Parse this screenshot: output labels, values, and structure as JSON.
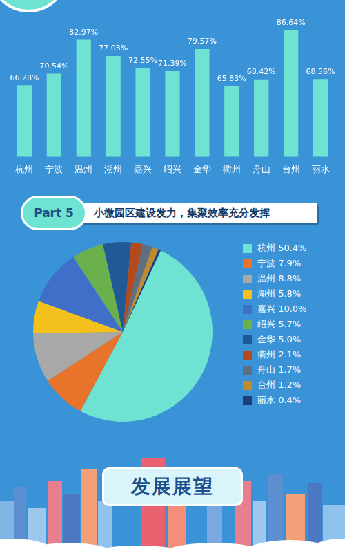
{
  "section": {
    "label": "Part 5",
    "title": "小微园区建设发力，集聚效率充分发挥"
  },
  "footer": {
    "title": "发展展望"
  },
  "chart_data": [
    {
      "type": "bar",
      "categories": [
        "杭州",
        "宁波",
        "温州",
        "湖州",
        "嘉兴",
        "绍兴",
        "金华",
        "衢州",
        "舟山",
        "台州",
        "丽水"
      ],
      "values": [
        66.28,
        70.54,
        82.97,
        77.03,
        72.55,
        71.39,
        79.57,
        65.83,
        68.42,
        86.64,
        68.56
      ],
      "value_labels": [
        "66.28%",
        "70.54%",
        "82.97%",
        "77.03%",
        "72.55%",
        "71.39%",
        "79.57%",
        "65.83%",
        "68.42%",
        "86.64%",
        "68.56%"
      ],
      "color": "#6fe3d1",
      "ylim": [
        40,
        90
      ],
      "grid": false,
      "data_labels": true,
      "tick_labels": "x"
    },
    {
      "type": "pie",
      "categories": [
        "杭州",
        "宁波",
        "温州",
        "湖州",
        "嘉兴",
        "绍兴",
        "金华",
        "衢州",
        "舟山",
        "台州",
        "丽水"
      ],
      "values": [
        50.4,
        7.9,
        8.8,
        5.8,
        10.0,
        5.7,
        5.0,
        2.1,
        1.7,
        1.2,
        0.4
      ],
      "value_labels": [
        "50.4%",
        "7.9%",
        "8.8%",
        "5.8%",
        "10.0%",
        "5.7%",
        "5.0%",
        "2.1%",
        "1.7%",
        "1.2%",
        "0.4%"
      ],
      "colors": [
        "#6fe3d1",
        "#e8742c",
        "#a8a8a8",
        "#f3c01c",
        "#3f6fc8",
        "#6ab04c",
        "#1f5a96",
        "#b34a1c",
        "#5f6f80",
        "#c08a30",
        "#1c3f7a"
      ],
      "legend": "right",
      "data_labels": false
    }
  ]
}
